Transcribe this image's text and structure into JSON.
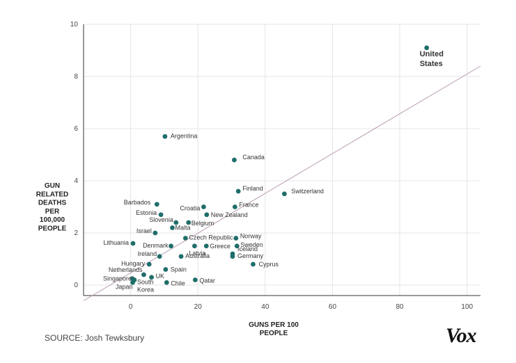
{
  "chart_data": {
    "type": "scatter",
    "xlabel": "GUNS PER 100\nPEOPLE",
    "ylabel": "GUN\nRELATED\nDEATHS\nPER\n100,000\nPEOPLE",
    "xlim": [
      -14,
      104
    ],
    "ylim": [
      -0.4,
      10
    ],
    "xticks": [
      0,
      20,
      40,
      60,
      80,
      100
    ],
    "yticks": [
      0,
      2,
      4,
      6,
      8,
      10
    ],
    "grid": true,
    "trendline": {
      "x": [
        -14,
        104
      ],
      "y": [
        -0.6,
        8.4
      ]
    },
    "points": [
      {
        "label": "United States",
        "x": 88,
        "y": 9.1
      },
      {
        "label": "Argentina",
        "x": 10.2,
        "y": 5.7
      },
      {
        "label": "Canada",
        "x": 30.8,
        "y": 4.8
      },
      {
        "label": "Finland",
        "x": 32,
        "y": 3.6
      },
      {
        "label": "Switzerland",
        "x": 45.7,
        "y": 3.5
      },
      {
        "label": "Barbados",
        "x": 7.8,
        "y": 3.1
      },
      {
        "label": "Croatia",
        "x": 21.7,
        "y": 3.0
      },
      {
        "label": "France",
        "x": 31,
        "y": 3.0
      },
      {
        "label": "Estonia",
        "x": 9,
        "y": 2.7
      },
      {
        "label": "New Zealand",
        "x": 22.6,
        "y": 2.7
      },
      {
        "label": "Slovenia",
        "x": 13.5,
        "y": 2.4
      },
      {
        "label": "Belgium",
        "x": 17.2,
        "y": 2.4
      },
      {
        "label": "Malta",
        "x": 12.4,
        "y": 2.2
      },
      {
        "label": "Israel",
        "x": 7.3,
        "y": 2.0
      },
      {
        "label": "Czech Republic",
        "x": 16.3,
        "y": 1.8
      },
      {
        "label": "Norway",
        "x": 31.3,
        "y": 1.8
      },
      {
        "label": "Lithuania",
        "x": 0.7,
        "y": 1.6
      },
      {
        "label": "Denmark",
        "x": 12,
        "y": 1.5
      },
      {
        "label": "Latvia",
        "x": 19,
        "y": 1.5
      },
      {
        "label": "Greece",
        "x": 22.5,
        "y": 1.5
      },
      {
        "label": "Sweden",
        "x": 31.6,
        "y": 1.5
      },
      {
        "label": "Iceland",
        "x": 30.3,
        "y": 1.2
      },
      {
        "label": "Ireland",
        "x": 8.6,
        "y": 1.1
      },
      {
        "label": "Australia",
        "x": 15,
        "y": 1.1
      },
      {
        "label": "Germany",
        "x": 30.3,
        "y": 1.1
      },
      {
        "label": "Hungary",
        "x": 5.5,
        "y": 0.8
      },
      {
        "label": "Cyprus",
        "x": 36.4,
        "y": 0.8
      },
      {
        "label": "Spain",
        "x": 10.4,
        "y": 0.6
      },
      {
        "label": "Netherlands",
        "x": 3.9,
        "y": 0.4
      },
      {
        "label": "UK",
        "x": 6.2,
        "y": 0.3
      },
      {
        "label": "Singapore",
        "x": 0.5,
        "y": 0.25
      },
      {
        "label": "South Korea",
        "x": 1.1,
        "y": 0.2
      },
      {
        "label": "Japan",
        "x": 0.6,
        "y": 0.1
      },
      {
        "label": "Chile",
        "x": 10.7,
        "y": 0.1
      },
      {
        "label": "Qatar",
        "x": 19.2,
        "y": 0.2
      }
    ]
  },
  "source": "SOURCE: Josh Tewksbury",
  "logo_text": "Vox",
  "colors": {
    "point": "#1f6e6a",
    "trendline": "#b79cb3",
    "grid": "#e4e4e4",
    "axis": "#333333"
  }
}
